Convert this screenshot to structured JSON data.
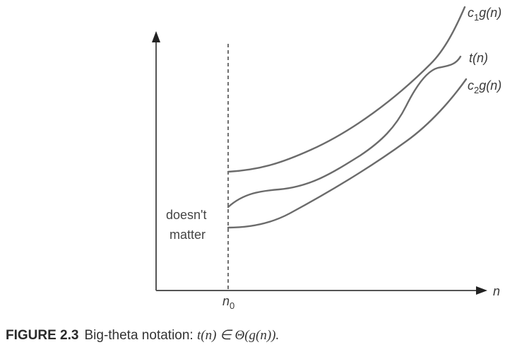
{
  "figure": {
    "curve_labels": {
      "c1g_coef": "c",
      "c1g_sub": "1",
      "c1g_tail": "g(n)",
      "t": "t(n)",
      "c2g_coef": "c",
      "c2g_sub": "2",
      "c2g_tail": "g(n)"
    },
    "x_axis_label": "n",
    "n0_main": "n",
    "n0_sub": "0",
    "note_line1": "doesn't",
    "note_line2": "matter"
  },
  "caption": {
    "number": "FIGURE 2.3",
    "title": "Big-theta notation:",
    "formula": "t(n) ∈ Θ(g(n))."
  },
  "colors": {
    "curves": "#6b6b6b",
    "axes": "#555555",
    "text": "#333333"
  }
}
